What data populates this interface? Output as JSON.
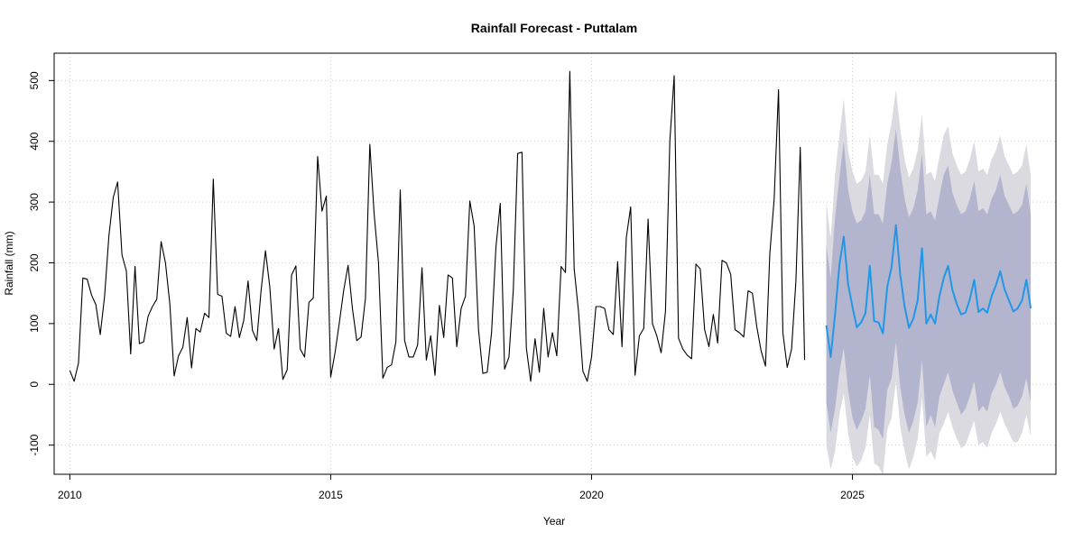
{
  "chart_data": {
    "type": "line",
    "title": "Rainfall Forecast - Puttalam",
    "xlabel": "Year",
    "ylabel": "Rainfall (mm)",
    "xlim": [
      2009.7,
      2028.9
    ],
    "ylim": [
      -148,
      545
    ],
    "x_ticks": [
      2010,
      2015,
      2020,
      2025
    ],
    "x_tick_labels": [
      "2010",
      "2015",
      "2020",
      "2025"
    ],
    "y_ticks": [
      -100,
      0,
      100,
      200,
      300,
      400,
      500
    ],
    "y_tick_labels": [
      "-100",
      "0",
      "100",
      "200",
      "300",
      "400",
      "500"
    ],
    "grid": true,
    "colors": {
      "history": "#000000",
      "forecast": "#2297e6",
      "band_95": "#dadae0",
      "band_80": "#b3b5cf"
    },
    "series": [
      {
        "role": "observed",
        "start": 2010.0,
        "frequency": 12,
        "values": [
          23,
          5,
          35,
          175,
          173,
          147,
          131,
          82,
          145,
          245,
          308,
          333,
          213,
          187,
          50,
          194,
          67,
          70,
          112,
          128,
          140,
          235,
          200,
          133,
          14,
          47,
          61,
          110,
          27,
          92,
          86,
          117,
          110,
          338,
          148,
          145,
          84,
          79,
          128,
          77,
          105,
          170,
          89,
          72,
          155,
          220,
          160,
          58,
          92,
          8,
          24,
          180,
          195,
          58,
          45,
          135,
          142,
          375,
          285,
          310,
          12,
          52,
          102,
          155,
          196,
          125,
          72,
          78,
          142,
          395,
          280,
          200,
          10,
          28,
          32,
          70,
          320,
          72,
          45,
          45,
          65,
          192,
          40,
          80,
          15,
          130,
          77,
          180,
          175,
          62,
          125,
          145,
          302,
          260,
          90,
          18,
          20,
          85,
          225,
          298,
          25,
          45,
          155,
          380,
          382,
          60,
          5,
          75,
          20,
          125,
          45,
          85,
          47,
          194,
          184,
          515,
          190,
          120,
          22,
          5,
          45,
          128,
          128,
          125,
          90,
          82,
          202,
          62,
          242,
          292,
          15,
          80,
          92,
          272,
          100,
          80,
          52,
          120,
          400,
          508,
          76,
          58,
          48,
          42,
          198,
          190,
          90,
          62,
          115,
          68,
          204,
          200,
          181,
          90,
          85,
          78,
          154,
          150,
          95,
          55,
          30,
          215,
          305,
          485,
          85,
          28,
          58,
          170,
          390,
          40
        ]
      },
      {
        "role": "forecast",
        "start": 2024.5,
        "frequency": 12,
        "values": [
          97,
          45,
          115,
          196,
          243,
          165,
          128,
          94,
          102,
          117,
          195,
          104,
          102,
          84,
          160,
          193,
          262,
          180,
          128,
          93,
          108,
          138,
          224,
          100,
          115,
          100,
          145,
          175,
          195,
          155,
          132,
          115,
          118,
          140,
          172,
          119,
          125,
          118,
          145,
          163,
          186,
          156,
          138,
          120,
          125,
          138,
          172,
          125
        ]
      }
    ],
    "intervals": {
      "lo80": [
        -30,
        -80,
        -40,
        20,
        60,
        -10,
        -55,
        -75,
        -60,
        -40,
        15,
        -70,
        -75,
        -90,
        -10,
        10,
        70,
        -5,
        -50,
        -80,
        -60,
        -30,
        40,
        -70,
        -50,
        -70,
        -20,
        0,
        20,
        -10,
        -30,
        -50,
        -40,
        -20,
        5,
        -45,
        -35,
        -45,
        -15,
        0,
        20,
        -5,
        -20,
        -40,
        -35,
        -20,
        10,
        -30
      ],
      "hi80": [
        230,
        175,
        275,
        340,
        400,
        320,
        285,
        265,
        270,
        285,
        345,
        280,
        280,
        265,
        330,
        365,
        420,
        355,
        305,
        275,
        290,
        320,
        380,
        280,
        285,
        270,
        310,
        345,
        360,
        315,
        295,
        280,
        285,
        305,
        335,
        285,
        290,
        280,
        305,
        320,
        345,
        310,
        295,
        280,
        285,
        295,
        330,
        280
      ],
      "lo95": [
        -100,
        -140,
        -110,
        -50,
        -15,
        -80,
        -120,
        -135,
        -125,
        -105,
        -50,
        -130,
        -135,
        -150,
        -75,
        -55,
        5,
        -70,
        -110,
        -140,
        -120,
        -90,
        -20,
        -120,
        -110,
        -125,
        -80,
        -65,
        -45,
        -70,
        -90,
        -105,
        -100,
        -80,
        -60,
        -100,
        -95,
        -105,
        -80,
        -65,
        -45,
        -65,
        -80,
        -95,
        -95,
        -80,
        -50,
        -85
      ],
      "hi95": [
        300,
        240,
        345,
        410,
        470,
        385,
        350,
        330,
        335,
        350,
        410,
        345,
        345,
        330,
        395,
        430,
        485,
        420,
        370,
        340,
        355,
        385,
        445,
        345,
        350,
        335,
        375,
        410,
        425,
        380,
        360,
        345,
        350,
        370,
        400,
        350,
        355,
        345,
        370,
        385,
        410,
        375,
        360,
        345,
        350,
        360,
        395,
        345
      ]
    }
  }
}
